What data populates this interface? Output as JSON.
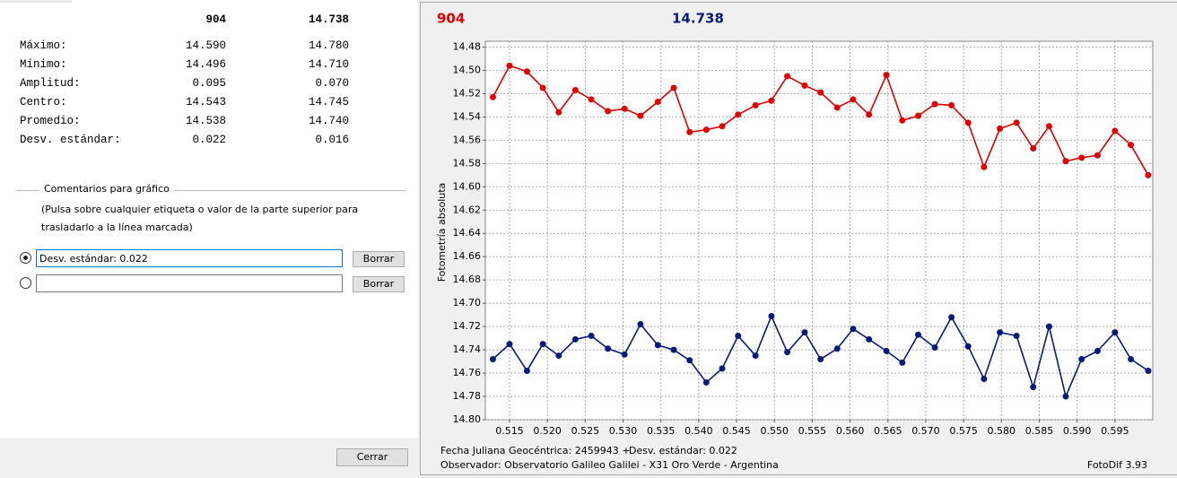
{
  "stats": {
    "header": [
      "904",
      "14.738"
    ],
    "rows": [
      [
        "Máximo:",
        "14.590",
        "14.780"
      ],
      [
        "Mínimo:",
        "14.496",
        "14.710"
      ],
      [
        "Amplitud:",
        "0.095",
        "0.070"
      ],
      [
        "Centro:",
        "14.543",
        "14.745"
      ],
      [
        "Promedio:",
        "14.538",
        "14.740"
      ],
      [
        "Desv. estándar:",
        "0.022",
        "0.016"
      ]
    ]
  },
  "comments": {
    "title": "Comentarios para gráfico",
    "instructions": "(Pulsa sobre cualquier etiqueta o valor de la parte superior para trasladarlo a la línea marcada)",
    "input_1": "Desv. estándar: 0.022",
    "clear_button": "Borrar"
  },
  "close_button": "Cerrar",
  "chart_data": {
    "type": "line",
    "y_label": "Fotometría absoluta",
    "x": [
      0.5128,
      0.515,
      0.5173,
      0.5194,
      0.5215,
      0.5237,
      0.5258,
      0.528,
      0.5302,
      0.5323,
      0.5346,
      0.5367,
      0.5388,
      0.541,
      0.5431,
      0.5452,
      0.5475,
      0.5496,
      0.5517,
      0.554,
      0.5561,
      0.5583,
      0.5604,
      0.5625,
      0.5648,
      0.5669,
      0.569,
      0.5712,
      0.5734,
      0.5756,
      0.5777,
      0.5798,
      0.582,
      0.5842,
      0.5863,
      0.5885,
      0.5906,
      0.5927,
      0.595,
      0.5971,
      0.5994
    ],
    "series": [
      {
        "name": "904",
        "color": "#e00000",
        "values": [
          14.523,
          14.496,
          14.501,
          14.515,
          14.536,
          14.517,
          14.525,
          14.535,
          14.533,
          14.539,
          14.527,
          14.515,
          14.553,
          14.551,
          14.548,
          14.538,
          14.53,
          14.526,
          14.505,
          14.513,
          14.519,
          14.532,
          14.525,
          14.538,
          14.504,
          14.543,
          14.539,
          14.529,
          14.53,
          14.545,
          14.583,
          14.55,
          14.545,
          14.567,
          14.548,
          14.578,
          14.575,
          14.573,
          14.552,
          14.564,
          14.59
        ]
      },
      {
        "name": "14.738",
        "color": "#0a1a78",
        "values": [
          14.748,
          14.735,
          14.758,
          14.735,
          14.745,
          14.731,
          14.728,
          14.739,
          14.744,
          14.718,
          14.736,
          14.74,
          14.749,
          14.768,
          14.756,
          14.728,
          14.745,
          14.711,
          14.742,
          14.725,
          14.748,
          14.739,
          14.722,
          14.731,
          14.741,
          14.751,
          14.727,
          14.738,
          14.712,
          14.737,
          14.765,
          14.725,
          14.728,
          14.772,
          14.72,
          14.78,
          14.748,
          14.741,
          14.725,
          14.748,
          14.758
        ]
      }
    ],
    "xlim": [
      0.5118,
      0.6
    ],
    "xticks": [
      0.515,
      {
        "value": 0.52,
        "label": "0.520"
      },
      0.525,
      {
        "value": 0.53,
        "label": "0.530"
      },
      0.535,
      {
        "value": 0.54,
        "label": "0.540"
      },
      0.545,
      {
        "value": 0.55,
        "label": "0.550"
      },
      0.555,
      {
        "value": 0.56,
        "label": "0.560"
      },
      0.565,
      {
        "value": 0.57,
        "label": "0.570"
      },
      0.575,
      {
        "value": 0.58,
        "label": "0.580"
      },
      0.585,
      {
        "value": 0.59,
        "label": "0.590"
      },
      0.595
    ],
    "ylim": [
      14.475,
      14.8
    ],
    "y_inverted": true,
    "yticks": [
      14.48,
      {
        "value": 14.5,
        "label": "14.50"
      },
      14.52,
      14.54,
      14.56,
      14.58,
      {
        "value": 14.6,
        "label": "14.60"
      },
      14.62,
      14.64,
      14.66,
      14.68,
      {
        "value": 14.7,
        "label": "14.70"
      },
      14.72,
      14.74,
      14.76,
      14.78,
      {
        "value": 14.8,
        "label": "14.80"
      }
    ],
    "grid": true,
    "footer": {
      "date": "Fecha Juliana Geocéntrica: 2459943 +",
      "std": "Desv. estándar: 0.022",
      "observer": "Observador: Observatorio Galileo Galilei - X31 Oro Verde - Argentina",
      "software": "FotoDif 3.93"
    }
  }
}
